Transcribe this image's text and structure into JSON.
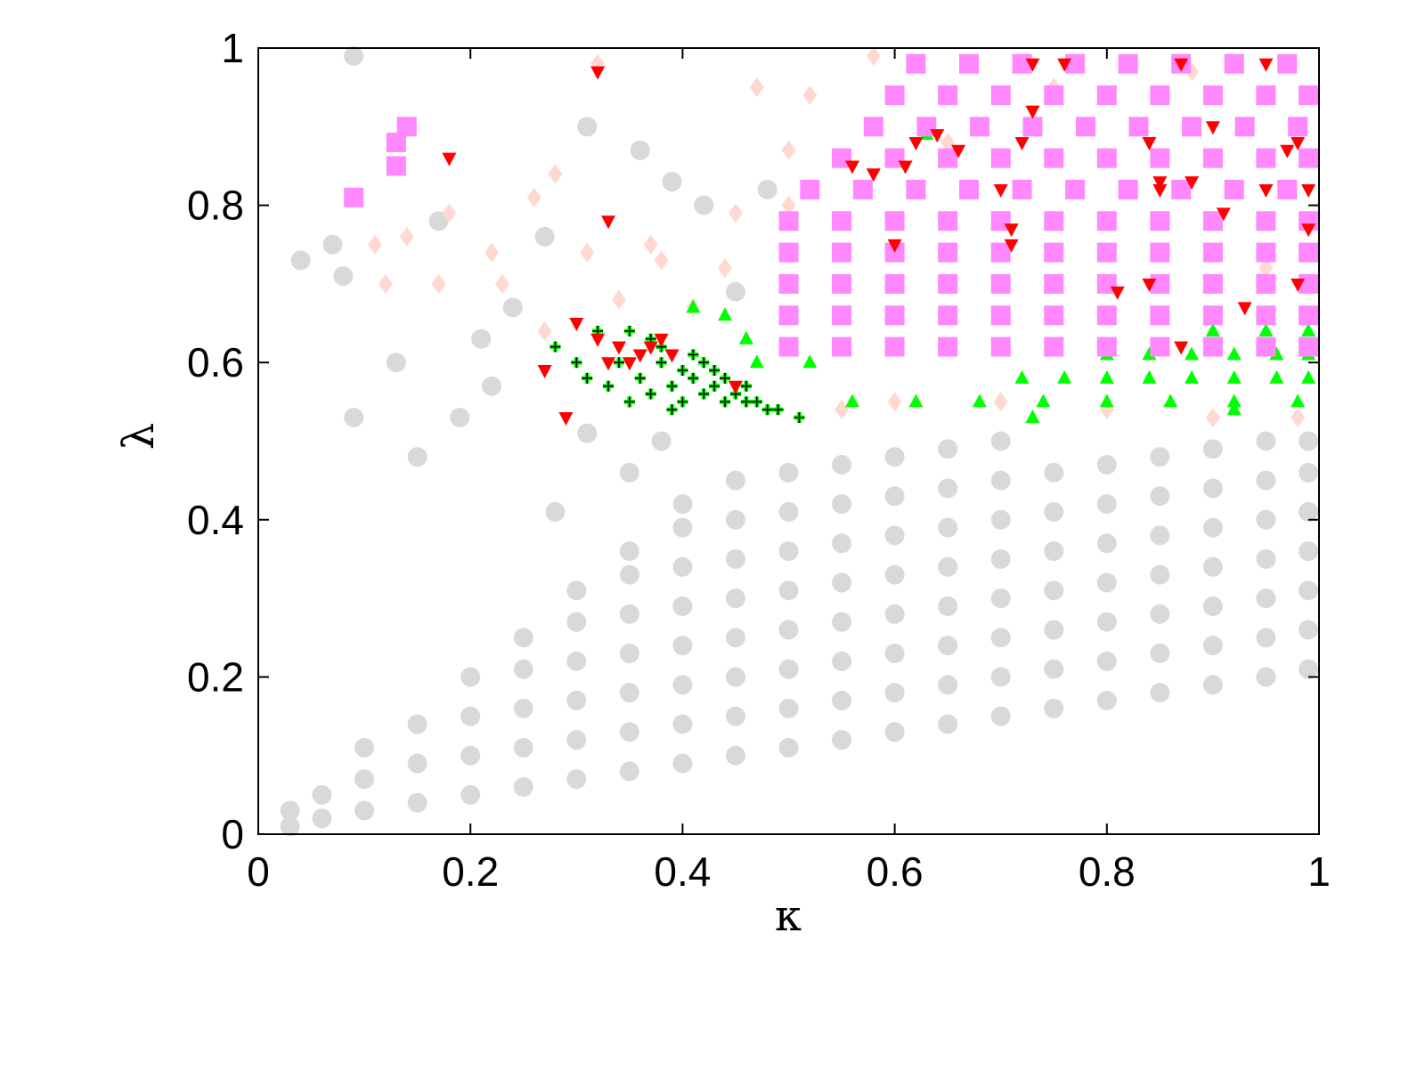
{
  "chart_data": {
    "type": "scatter",
    "xlabel": "κ",
    "ylabel": "λ",
    "xlim": [
      0,
      1
    ],
    "ylim": [
      0,
      1
    ],
    "xticks": [
      0,
      0.2,
      0.4,
      0.6,
      0.8,
      1
    ],
    "yticks": [
      0,
      0.2,
      0.4,
      0.6,
      0.8,
      1
    ],
    "series": [
      {
        "color": "#d9d9d9",
        "marker": "circle",
        "x": [
          0.03,
          0.03,
          0.06,
          0.06,
          0.1,
          0.1,
          0.1,
          0.15,
          0.15,
          0.15,
          0.2,
          0.2,
          0.2,
          0.2,
          0.25,
          0.25,
          0.25,
          0.25,
          0.25,
          0.3,
          0.3,
          0.3,
          0.3,
          0.3,
          0.3,
          0.35,
          0.35,
          0.35,
          0.35,
          0.35,
          0.35,
          0.35,
          0.4,
          0.4,
          0.4,
          0.4,
          0.4,
          0.4,
          0.4,
          0.4,
          0.45,
          0.45,
          0.45,
          0.45,
          0.45,
          0.45,
          0.45,
          0.45,
          0.5,
          0.5,
          0.5,
          0.5,
          0.5,
          0.5,
          0.5,
          0.5,
          0.55,
          0.55,
          0.55,
          0.55,
          0.55,
          0.55,
          0.55,
          0.55,
          0.6,
          0.6,
          0.6,
          0.6,
          0.6,
          0.6,
          0.6,
          0.6,
          0.65,
          0.65,
          0.65,
          0.65,
          0.65,
          0.65,
          0.65,
          0.65,
          0.7,
          0.7,
          0.7,
          0.7,
          0.7,
          0.7,
          0.7,
          0.7,
          0.75,
          0.75,
          0.75,
          0.75,
          0.75,
          0.75,
          0.75,
          0.8,
          0.8,
          0.8,
          0.8,
          0.8,
          0.8,
          0.8,
          0.85,
          0.85,
          0.85,
          0.85,
          0.85,
          0.85,
          0.85,
          0.9,
          0.9,
          0.9,
          0.9,
          0.9,
          0.9,
          0.9,
          0.95,
          0.95,
          0.95,
          0.95,
          0.95,
          0.95,
          0.95,
          0.99,
          0.99,
          0.99,
          0.99,
          0.99,
          0.99,
          0.99,
          0.09,
          0.04,
          0.07,
          0.08,
          0.13,
          0.15,
          0.09,
          0.17,
          0.21,
          0.22,
          0.24,
          0.27,
          0.31,
          0.36,
          0.39,
          0.35,
          0.31,
          0.28,
          0.42,
          0.45,
          0.38,
          0.48,
          0.19
        ],
        "y": [
          0.01,
          0.03,
          0.02,
          0.05,
          0.03,
          0.07,
          0.11,
          0.04,
          0.09,
          0.14,
          0.05,
          0.1,
          0.15,
          0.2,
          0.06,
          0.11,
          0.16,
          0.21,
          0.25,
          0.07,
          0.12,
          0.17,
          0.22,
          0.27,
          0.31,
          0.08,
          0.13,
          0.18,
          0.23,
          0.28,
          0.33,
          0.36,
          0.09,
          0.14,
          0.19,
          0.24,
          0.29,
          0.34,
          0.39,
          0.42,
          0.1,
          0.15,
          0.2,
          0.25,
          0.3,
          0.35,
          0.4,
          0.45,
          0.11,
          0.16,
          0.21,
          0.26,
          0.31,
          0.36,
          0.41,
          0.46,
          0.12,
          0.17,
          0.22,
          0.27,
          0.32,
          0.37,
          0.42,
          0.47,
          0.13,
          0.18,
          0.23,
          0.28,
          0.33,
          0.38,
          0.43,
          0.48,
          0.14,
          0.19,
          0.24,
          0.29,
          0.34,
          0.39,
          0.44,
          0.49,
          0.15,
          0.2,
          0.25,
          0.3,
          0.35,
          0.4,
          0.45,
          0.5,
          0.16,
          0.21,
          0.26,
          0.31,
          0.36,
          0.41,
          0.46,
          0.17,
          0.22,
          0.27,
          0.32,
          0.37,
          0.42,
          0.47,
          0.18,
          0.23,
          0.28,
          0.33,
          0.38,
          0.43,
          0.48,
          0.19,
          0.24,
          0.29,
          0.34,
          0.39,
          0.44,
          0.49,
          0.2,
          0.25,
          0.3,
          0.35,
          0.4,
          0.45,
          0.5,
          0.21,
          0.26,
          0.31,
          0.36,
          0.41,
          0.46,
          0.5,
          0.99,
          0.73,
          0.75,
          0.71,
          0.6,
          0.48,
          0.53,
          0.78,
          0.63,
          0.57,
          0.67,
          0.76,
          0.9,
          0.87,
          0.83,
          0.46,
          0.51,
          0.41,
          0.8,
          0.69,
          0.5,
          0.82,
          0.53
        ]
      },
      {
        "color": "#ffd8d0",
        "marker": "diamond",
        "x": [
          0.11,
          0.12,
          0.14,
          0.18,
          0.17,
          0.22,
          0.23,
          0.26,
          0.27,
          0.28,
          0.31,
          0.32,
          0.34,
          0.37,
          0.38,
          0.41,
          0.44,
          0.47,
          0.5,
          0.52,
          0.58,
          0.62,
          0.55,
          0.6,
          0.7,
          0.8,
          0.9,
          0.98,
          0.65,
          0.75,
          0.88,
          0.95,
          0.5,
          0.45
        ],
        "y": [
          0.75,
          0.7,
          0.76,
          0.79,
          0.7,
          0.74,
          0.7,
          0.81,
          0.64,
          0.84,
          0.74,
          0.98,
          0.68,
          0.75,
          0.73,
          0.67,
          0.72,
          0.95,
          0.87,
          0.94,
          0.99,
          0.98,
          0.54,
          0.55,
          0.55,
          0.54,
          0.53,
          0.53,
          0.88,
          0.95,
          0.97,
          0.72,
          0.8,
          0.79
        ]
      },
      {
        "color": "#00ff00",
        "marker": "triangle-up",
        "x": [
          0.56,
          0.62,
          0.68,
          0.74,
          0.8,
          0.86,
          0.92,
          0.98,
          0.72,
          0.76,
          0.8,
          0.84,
          0.88,
          0.92,
          0.96,
          0.99,
          0.8,
          0.84,
          0.88,
          0.92,
          0.96,
          0.99,
          0.9,
          0.95,
          0.99,
          0.41,
          0.44,
          0.46,
          0.47,
          0.5,
          0.52,
          0.63,
          0.99,
          0.73,
          0.92
        ],
        "y": [
          0.55,
          0.55,
          0.55,
          0.55,
          0.55,
          0.55,
          0.55,
          0.55,
          0.58,
          0.58,
          0.58,
          0.58,
          0.58,
          0.58,
          0.58,
          0.58,
          0.61,
          0.61,
          0.61,
          0.61,
          0.61,
          0.61,
          0.64,
          0.64,
          0.64,
          0.67,
          0.66,
          0.63,
          0.6,
          0.78,
          0.6,
          0.89,
          0.74,
          0.53,
          0.54
        ]
      },
      {
        "color": "#ff88ff",
        "marker": "square",
        "x": [
          0.5,
          0.55,
          0.6,
          0.65,
          0.7,
          0.75,
          0.8,
          0.85,
          0.9,
          0.95,
          0.99,
          0.5,
          0.55,
          0.6,
          0.65,
          0.7,
          0.75,
          0.8,
          0.85,
          0.9,
          0.95,
          0.99,
          0.5,
          0.55,
          0.6,
          0.65,
          0.7,
          0.75,
          0.8,
          0.85,
          0.9,
          0.95,
          0.99,
          0.5,
          0.55,
          0.6,
          0.65,
          0.7,
          0.75,
          0.8,
          0.85,
          0.9,
          0.95,
          0.99,
          0.5,
          0.55,
          0.6,
          0.65,
          0.7,
          0.75,
          0.8,
          0.85,
          0.9,
          0.95,
          0.99,
          0.52,
          0.57,
          0.62,
          0.67,
          0.72,
          0.77,
          0.82,
          0.87,
          0.92,
          0.97,
          0.55,
          0.6,
          0.65,
          0.7,
          0.75,
          0.8,
          0.85,
          0.9,
          0.95,
          0.99,
          0.58,
          0.63,
          0.68,
          0.73,
          0.78,
          0.83,
          0.88,
          0.93,
          0.98,
          0.6,
          0.65,
          0.7,
          0.75,
          0.8,
          0.85,
          0.9,
          0.95,
          0.99,
          0.62,
          0.67,
          0.72,
          0.77,
          0.82,
          0.87,
          0.92,
          0.97,
          0.09,
          0.13,
          0.13,
          0.14
        ],
        "y": [
          0.62,
          0.62,
          0.62,
          0.62,
          0.62,
          0.62,
          0.62,
          0.62,
          0.62,
          0.62,
          0.62,
          0.66,
          0.66,
          0.66,
          0.66,
          0.66,
          0.66,
          0.66,
          0.66,
          0.66,
          0.66,
          0.66,
          0.7,
          0.7,
          0.7,
          0.7,
          0.7,
          0.7,
          0.7,
          0.7,
          0.7,
          0.7,
          0.7,
          0.74,
          0.74,
          0.74,
          0.74,
          0.74,
          0.74,
          0.74,
          0.74,
          0.74,
          0.74,
          0.74,
          0.78,
          0.78,
          0.78,
          0.78,
          0.78,
          0.78,
          0.78,
          0.78,
          0.78,
          0.78,
          0.78,
          0.82,
          0.82,
          0.82,
          0.82,
          0.82,
          0.82,
          0.82,
          0.82,
          0.82,
          0.82,
          0.86,
          0.86,
          0.86,
          0.86,
          0.86,
          0.86,
          0.86,
          0.86,
          0.86,
          0.86,
          0.9,
          0.9,
          0.9,
          0.9,
          0.9,
          0.9,
          0.9,
          0.9,
          0.9,
          0.94,
          0.94,
          0.94,
          0.94,
          0.94,
          0.94,
          0.94,
          0.94,
          0.94,
          0.98,
          0.98,
          0.98,
          0.98,
          0.98,
          0.98,
          0.98,
          0.98,
          0.81,
          0.85,
          0.88,
          0.9
        ]
      },
      {
        "color": "#000000",
        "halo": "#00ff00",
        "marker": "plus",
        "x": [
          0.28,
          0.3,
          0.31,
          0.32,
          0.33,
          0.34,
          0.35,
          0.35,
          0.36,
          0.37,
          0.38,
          0.38,
          0.39,
          0.4,
          0.4,
          0.41,
          0.42,
          0.42,
          0.43,
          0.43,
          0.44,
          0.44,
          0.45,
          0.46,
          0.46,
          0.47,
          0.48,
          0.49,
          0.51,
          0.39,
          0.41,
          0.37
        ],
        "y": [
          0.62,
          0.6,
          0.58,
          0.64,
          0.57,
          0.6,
          0.55,
          0.64,
          0.58,
          0.56,
          0.6,
          0.62,
          0.57,
          0.59,
          0.55,
          0.58,
          0.6,
          0.56,
          0.57,
          0.59,
          0.55,
          0.58,
          0.56,
          0.57,
          0.55,
          0.55,
          0.54,
          0.54,
          0.53,
          0.54,
          0.61,
          0.63
        ]
      },
      {
        "color": "#ff0000",
        "marker": "triangle-down",
        "x": [
          0.18,
          0.32,
          0.33,
          0.27,
          0.29,
          0.3,
          0.32,
          0.33,
          0.34,
          0.35,
          0.36,
          0.37,
          0.38,
          0.39,
          0.45,
          0.56,
          0.58,
          0.6,
          0.61,
          0.62,
          0.64,
          0.66,
          0.7,
          0.71,
          0.71,
          0.72,
          0.73,
          0.73,
          0.76,
          0.81,
          0.84,
          0.84,
          0.85,
          0.85,
          0.87,
          0.87,
          0.88,
          0.9,
          0.91,
          0.93,
          0.95,
          0.97,
          0.98,
          0.98,
          0.99,
          0.99,
          0.95
        ],
        "y": [
          0.86,
          0.97,
          0.78,
          0.59,
          0.53,
          0.65,
          0.63,
          0.6,
          0.62,
          0.6,
          0.61,
          0.62,
          0.63,
          0.61,
          0.57,
          0.85,
          0.84,
          0.75,
          0.85,
          0.88,
          0.89,
          0.87,
          0.82,
          0.77,
          0.75,
          0.88,
          0.92,
          0.98,
          0.98,
          0.69,
          0.88,
          0.7,
          0.82,
          0.83,
          0.62,
          0.98,
          0.83,
          0.9,
          0.79,
          0.67,
          0.82,
          0.87,
          0.88,
          0.7,
          0.82,
          0.77,
          0.98
        ]
      }
    ]
  }
}
